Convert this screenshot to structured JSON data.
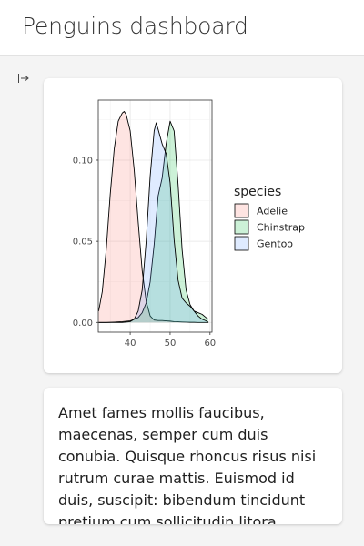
{
  "header": {
    "title": "Penguins dashboard"
  },
  "sidebar_toggle": {
    "icon": "sidebar-expand-icon"
  },
  "text_card": {
    "body": "Amet fames mollis faucibus, maecenas, semper cum duis conubia. Quisque rhoncus risus nisi rutrum curae mattis. Euismod id duis, suscipit: bibendum tincidunt pretium cum sollicitudin litora malesuada dui nulla!"
  },
  "chart_data": {
    "type": "area",
    "xlabel": "",
    "ylabel": "",
    "xlim": [
      32,
      60.5
    ],
    "ylim": [
      -0.006,
      0.137
    ],
    "x_ticks": [
      40,
      50,
      60
    ],
    "y_ticks": [
      0.0,
      0.05,
      0.1
    ],
    "y_tick_labels": [
      "0.00",
      "0.05",
      "0.10"
    ],
    "grid": true,
    "legend": {
      "title": "species",
      "placement": "right"
    },
    "series": [
      {
        "name": "Adelie",
        "fill": "#F8766D",
        "x": [
          32.1,
          33,
          34,
          35,
          36,
          37,
          38,
          38.5,
          39,
          40,
          41,
          42,
          43,
          44,
          45,
          46,
          47,
          48,
          49,
          50,
          51,
          52,
          53,
          54,
          55,
          56,
          57,
          58,
          59,
          59.6
        ],
        "y": [
          0.007,
          0.019,
          0.045,
          0.079,
          0.107,
          0.124,
          0.129,
          0.13,
          0.128,
          0.118,
          0.094,
          0.062,
          0.032,
          0.013,
          0.004,
          0.0015,
          0.0012,
          0.0012,
          0.001,
          0.0008,
          0.0005,
          0.0004,
          0.0003,
          0.0002,
          0.0001,
          0.0001,
          0,
          0,
          0,
          0
        ]
      },
      {
        "name": "Chinstrap",
        "fill": "#00BA38",
        "x": [
          32.1,
          34,
          36,
          38,
          40,
          42,
          43,
          44,
          45,
          46,
          47,
          48,
          49,
          50,
          51,
          52,
          53,
          54,
          55,
          56,
          57,
          58,
          59,
          59.6
        ],
        "y": [
          0,
          0,
          0.0002,
          0.0005,
          0.001,
          0.003,
          0.006,
          0.012,
          0.025,
          0.048,
          0.078,
          0.089,
          0.11,
          0.124,
          0.118,
          0.085,
          0.045,
          0.02,
          0.011,
          0.007,
          0.006,
          0.005,
          0.003,
          0.002
        ]
      },
      {
        "name": "Gentoo",
        "fill": "#619CFF",
        "x": [
          32.1,
          38,
          40,
          41,
          42,
          43,
          44,
          45,
          46,
          46.5,
          47,
          48,
          49,
          50,
          51,
          52,
          53,
          54,
          55,
          56,
          57,
          58,
          59,
          59.6
        ],
        "y": [
          0,
          0,
          0.0005,
          0.002,
          0.007,
          0.02,
          0.05,
          0.09,
          0.118,
          0.123,
          0.119,
          0.11,
          0.104,
          0.086,
          0.051,
          0.026,
          0.015,
          0.012,
          0.01,
          0.007,
          0.004,
          0.002,
          0.001,
          0
        ]
      }
    ]
  }
}
